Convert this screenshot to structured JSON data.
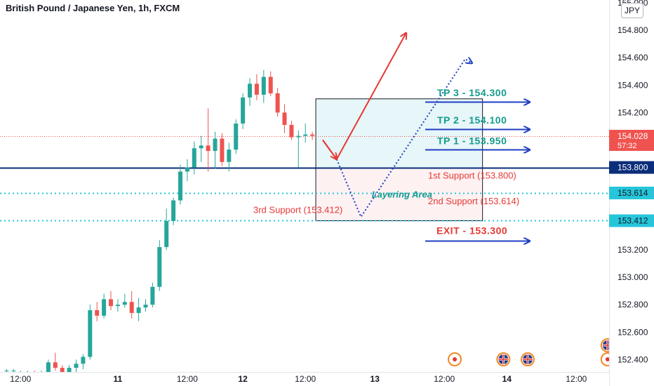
{
  "header": {
    "title": "British Pound / Japanese Yen, 1h, FXCM",
    "currency": "JPY"
  },
  "colors": {
    "up": "#26a69a",
    "down": "#ef5350",
    "teal": "#139c8e",
    "red": "#e53935",
    "blue": "#1f3fc4",
    "navy": "#0b2e7a",
    "cyan": "#26c6da",
    "axis": "#131722",
    "layer_fill_top": "#e7f6f8",
    "layer_fill_bottom": "#fdf1f2"
  },
  "chart_data": {
    "type": "candlestick",
    "title": "British Pound / Japanese Yen, 1h, FXCM",
    "y_tick_labels": [
      "152.400",
      "152.600",
      "152.800",
      "153.000",
      "153.200",
      "154.200",
      "154.400",
      "154.600",
      "154.800"
    ],
    "y_tick_values": [
      152.4,
      152.6,
      152.8,
      153.0,
      153.2,
      154.2,
      154.4,
      154.6,
      154.8
    ],
    "x_tick_labels": [
      "12:00",
      "11",
      "12:00",
      "12",
      "12:00",
      "13",
      "12:00",
      "14",
      "12:00"
    ],
    "x_tick_bar_index": [
      2,
      16,
      26,
      34,
      43,
      53,
      63,
      72,
      82
    ],
    "ylim": [
      152.31,
      155.02
    ],
    "price_labels": [
      {
        "text": "154.028",
        "sub": "57:32",
        "value": 154.028,
        "color": "#ef5350"
      },
      {
        "text": "153.800",
        "value": 153.8,
        "color": "#0b2e7a"
      },
      {
        "text": "153.614",
        "value": 153.614,
        "color": "#26c6da"
      },
      {
        "text": "153.412",
        "value": 153.412,
        "color": "#26c6da"
      }
    ],
    "candles": [
      [
        152.32,
        152.33,
        152.31,
        152.32
      ],
      [
        152.32,
        152.33,
        152.31,
        152.32
      ],
      [
        152.31,
        152.32,
        152.3,
        152.31
      ],
      [
        152.31,
        152.32,
        152.3,
        152.31
      ],
      [
        152.31,
        152.32,
        152.3,
        152.3
      ],
      [
        152.3,
        152.32,
        152.29,
        152.31
      ],
      [
        152.31,
        152.4,
        152.3,
        152.38
      ],
      [
        152.38,
        152.45,
        152.32,
        152.34
      ],
      [
        152.34,
        152.36,
        152.3,
        152.31
      ],
      [
        152.31,
        152.36,
        152.29,
        152.34
      ],
      [
        152.34,
        152.4,
        152.3,
        152.37
      ],
      [
        152.37,
        152.44,
        152.33,
        152.42
      ],
      [
        152.42,
        152.8,
        152.4,
        152.76
      ],
      [
        152.76,
        152.82,
        152.68,
        152.72
      ],
      [
        152.72,
        152.88,
        152.7,
        152.84
      ],
      [
        152.84,
        152.9,
        152.76,
        152.79
      ],
      [
        152.79,
        152.84,
        152.75,
        152.8
      ],
      [
        152.8,
        152.88,
        152.78,
        152.82
      ],
      [
        152.82,
        152.9,
        152.7,
        152.74
      ],
      [
        152.74,
        152.85,
        152.68,
        152.78
      ],
      [
        152.78,
        152.84,
        152.75,
        152.8
      ],
      [
        152.8,
        152.96,
        152.78,
        152.93
      ],
      [
        152.93,
        153.27,
        152.9,
        153.22
      ],
      [
        153.22,
        153.5,
        153.2,
        153.41
      ],
      [
        153.41,
        153.58,
        153.38,
        153.56
      ],
      [
        153.56,
        153.82,
        153.53,
        153.77
      ],
      [
        153.77,
        153.86,
        153.7,
        153.8
      ],
      [
        153.8,
        153.99,
        153.75,
        153.94
      ],
      [
        153.94,
        154.03,
        153.84,
        153.96
      ],
      [
        153.96,
        154.23,
        153.77,
        153.92
      ],
      [
        153.92,
        154.06,
        153.79,
        154.01
      ],
      [
        154.01,
        154.05,
        153.81,
        153.84
      ],
      [
        153.84,
        153.98,
        153.77,
        153.93
      ],
      [
        153.93,
        154.15,
        153.9,
        154.12
      ],
      [
        154.12,
        154.34,
        154.08,
        154.31
      ],
      [
        154.31,
        154.45,
        154.25,
        154.41
      ],
      [
        154.41,
        154.48,
        154.29,
        154.33
      ],
      [
        154.33,
        154.51,
        154.27,
        154.46
      ],
      [
        154.46,
        154.5,
        154.32,
        154.34
      ],
      [
        154.34,
        154.38,
        154.17,
        154.2
      ],
      [
        154.2,
        154.26,
        154.05,
        154.11
      ],
      [
        154.11,
        154.14,
        154.0,
        154.02
      ],
      [
        154.02,
        154.07,
        153.8,
        154.03
      ],
      [
        154.03,
        154.12,
        153.98,
        154.04
      ],
      [
        154.04,
        154.06,
        154.0,
        154.03
      ]
    ],
    "horizontal_levels": [
      {
        "value": 153.8,
        "style": "solid",
        "color": "#0b2e7a"
      },
      {
        "value": 153.614,
        "style": "dotted",
        "color": "#26c6da"
      },
      {
        "value": 153.412,
        "style": "dotted",
        "color": "#26c6da"
      },
      {
        "value": 154.028,
        "style": "dotted",
        "color": "#ef5350"
      }
    ],
    "layering_box": {
      "label": "Layering Area",
      "top_value": 154.3,
      "mid_value": 153.8,
      "bottom_value": 153.412,
      "x_start_index": 44.5,
      "x_end_index": 68.5
    },
    "annotations": [
      {
        "text": "TP 3 - 154.300",
        "value": 154.3,
        "color": "#139c8e",
        "bold": true
      },
      {
        "text": "TP 2 - 154.100",
        "value": 154.1,
        "color": "#139c8e",
        "bold": true
      },
      {
        "text": "TP 1 - 153.950",
        "value": 153.95,
        "color": "#139c8e",
        "bold": true
      },
      {
        "text": "1st Support (153.800)",
        "value": 153.8,
        "color": "#e53935",
        "bold": false
      },
      {
        "text": "2nd Support (153.614)",
        "value": 153.614,
        "color": "#e53935",
        "bold": false
      },
      {
        "text": "3rd Support (153.412)",
        "value": 153.412,
        "color": "#e53935",
        "bold": false
      },
      {
        "text": "EXIT - 153.300",
        "value": 153.3,
        "color": "#e53935",
        "bold": true
      }
    ],
    "scenario_paths": [
      {
        "style": "solid",
        "color": "#e53935",
        "points": [
          [
            45.5,
            154.0
          ],
          [
            47.5,
            153.86
          ],
          [
            57.5,
            154.78
          ]
        ]
      },
      {
        "style": "dotted",
        "color": "#1f3fc4",
        "points": [
          [
            47.5,
            153.86
          ],
          [
            51,
            153.44
          ],
          [
            66,
            154.59
          ],
          [
            67,
            154.56
          ]
        ]
      }
    ],
    "event_markers": [
      {
        "index": 64.5,
        "type": "dot"
      },
      {
        "index": 71.5,
        "type": "flag"
      },
      {
        "index": 75,
        "type": "flag"
      },
      {
        "index": 86.5,
        "type": "dot"
      },
      {
        "index": 86.5,
        "type": "flag",
        "stacked": true
      },
      {
        "index": 91,
        "type": "dot"
      }
    ]
  }
}
